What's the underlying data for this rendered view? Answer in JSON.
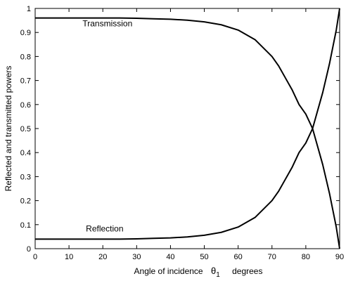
{
  "chart_data": {
    "type": "line",
    "title": "",
    "xlabel": "Angle of incidence",
    "xlabel_symbol": "θ",
    "xlabel_subscript": "1",
    "xlabel_unit": "degrees",
    "ylabel": "Reflected and transmitted powers",
    "xlim": [
      0,
      90
    ],
    "ylim": [
      0,
      1
    ],
    "xticks": [
      "0",
      "10",
      "20",
      "30",
      "40",
      "50",
      "60",
      "70",
      "80",
      "90"
    ],
    "yticks": [
      "0",
      "0.1",
      "0.2",
      "0.3",
      "0.4",
      "0.5",
      "0.6",
      "0.7",
      "0.8",
      "0.9",
      "1"
    ],
    "grid": false,
    "legend": "none",
    "x": [
      0,
      5,
      10,
      15,
      20,
      25,
      30,
      35,
      40,
      45,
      50,
      55,
      60,
      65,
      70,
      72,
      74,
      76,
      78,
      80,
      82,
      83,
      84,
      85,
      86,
      87,
      88,
      89,
      90
    ],
    "series": [
      {
        "label": "Transmission",
        "values": [
          0.96,
          0.96,
          0.96,
          0.96,
          0.96,
          0.96,
          0.959,
          0.957,
          0.955,
          0.951,
          0.944,
          0.932,
          0.91,
          0.87,
          0.8,
          0.76,
          0.71,
          0.66,
          0.6,
          0.56,
          0.5,
          0.45,
          0.4,
          0.35,
          0.29,
          0.23,
          0.16,
          0.09,
          0.0
        ]
      },
      {
        "label": "Reflection",
        "values": [
          0.04,
          0.04,
          0.04,
          0.04,
          0.04,
          0.04,
          0.041,
          0.043,
          0.045,
          0.049,
          0.056,
          0.068,
          0.09,
          0.13,
          0.2,
          0.24,
          0.29,
          0.34,
          0.4,
          0.44,
          0.5,
          0.55,
          0.6,
          0.65,
          0.71,
          0.77,
          0.84,
          0.91,
          1.0
        ]
      }
    ],
    "annotations": [
      {
        "text": "Transmission",
        "x": 14,
        "y": 0.925
      },
      {
        "text": "Reflection",
        "x": 15,
        "y": 0.072
      }
    ]
  }
}
